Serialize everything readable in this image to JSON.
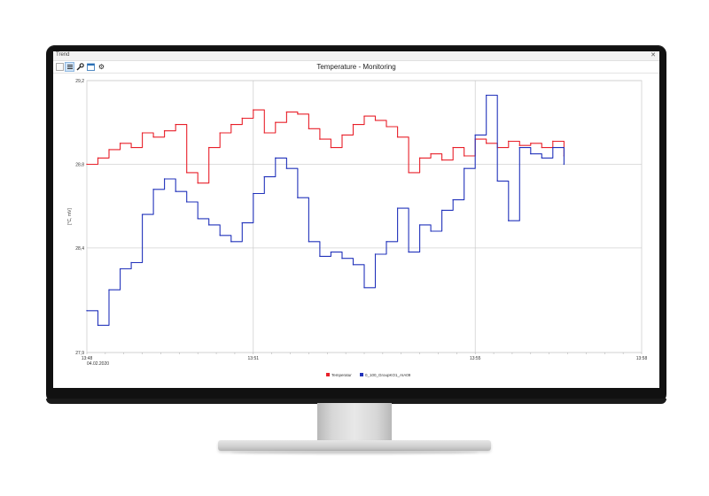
{
  "window": {
    "title": "Trend"
  },
  "toolbar": {
    "icons": [
      "chart-icon",
      "list-icon",
      "wrench-icon",
      "calendar-icon",
      "gear-icon"
    ],
    "title": "Temperature - Monitoring"
  },
  "chart_data": {
    "type": "line",
    "title": "Temperature - Monitoring",
    "xlabel": "",
    "ylabel": "[°C, mV]",
    "x_ticks": [
      "13:48",
      "13:51",
      "13:55",
      "13:58"
    ],
    "x_date": "04.02.2020",
    "y_ticks": [
      "27,9",
      "28,4",
      "28,8",
      "29,2"
    ],
    "ylim": [
      27.9,
      29.2
    ],
    "xlim": [
      "13:48",
      "13:58"
    ],
    "grid": true,
    "legend": "bottom-center",
    "series": [
      {
        "name": "Temperatur",
        "color": "#e8202a",
        "x": [
          "13:48:00",
          "13:48:12",
          "13:48:24",
          "13:48:36",
          "13:48:48",
          "13:49:00",
          "13:49:12",
          "13:49:24",
          "13:49:36",
          "13:49:48",
          "13:50:00",
          "13:50:12",
          "13:50:24",
          "13:50:36",
          "13:50:48",
          "13:51:00",
          "13:51:12",
          "13:51:24",
          "13:51:36",
          "13:51:48",
          "13:52:00",
          "13:52:12",
          "13:52:24",
          "13:52:36",
          "13:52:48",
          "13:53:00",
          "13:53:12",
          "13:53:24",
          "13:53:36",
          "13:53:48",
          "13:54:00",
          "13:54:12",
          "13:54:24",
          "13:54:36",
          "13:54:48",
          "13:55:00",
          "13:55:12",
          "13:55:24",
          "13:55:36",
          "13:55:48",
          "13:56:00",
          "13:56:12",
          "13:56:24",
          "13:56:36"
        ],
        "values": [
          28.8,
          28.83,
          28.87,
          28.9,
          28.88,
          28.95,
          28.93,
          28.96,
          28.99,
          28.76,
          28.71,
          28.88,
          28.95,
          28.99,
          29.02,
          29.06,
          28.95,
          29.0,
          29.05,
          29.04,
          28.97,
          28.92,
          28.88,
          28.94,
          28.99,
          29.03,
          29.01,
          28.98,
          28.93,
          28.76,
          28.83,
          28.85,
          28.82,
          28.88,
          28.84,
          28.92,
          28.9,
          28.88,
          28.91,
          28.89,
          28.9,
          28.88,
          28.91,
          28.84
        ]
      },
      {
        "name": "0_100_GroupKO1_AIA09",
        "color": "#2233bb",
        "x": [
          "13:48:00",
          "13:48:12",
          "13:48:24",
          "13:48:36",
          "13:48:48",
          "13:49:00",
          "13:49:12",
          "13:49:24",
          "13:49:36",
          "13:49:48",
          "13:50:00",
          "13:50:12",
          "13:50:24",
          "13:50:36",
          "13:50:48",
          "13:51:00",
          "13:51:12",
          "13:51:24",
          "13:51:36",
          "13:51:48",
          "13:52:00",
          "13:52:12",
          "13:52:24",
          "13:52:36",
          "13:52:48",
          "13:53:00",
          "13:53:12",
          "13:53:24",
          "13:53:36",
          "13:53:48",
          "13:54:00",
          "13:54:12",
          "13:54:24",
          "13:54:36",
          "13:54:48",
          "13:55:00",
          "13:55:12",
          "13:55:24",
          "13:55:36",
          "13:55:48",
          "13:56:00",
          "13:56:12",
          "13:56:24",
          "13:56:36"
        ],
        "values": [
          28.1,
          28.03,
          28.2,
          28.3,
          28.33,
          28.56,
          28.68,
          28.73,
          28.67,
          28.62,
          28.54,
          28.51,
          28.46,
          28.43,
          28.52,
          28.66,
          28.74,
          28.83,
          28.78,
          28.64,
          28.43,
          28.36,
          28.38,
          28.35,
          28.32,
          28.21,
          28.37,
          28.43,
          28.59,
          28.38,
          28.51,
          28.48,
          28.58,
          28.63,
          28.78,
          28.94,
          29.13,
          28.72,
          28.53,
          28.88,
          28.85,
          28.83,
          28.88,
          28.8
        ]
      }
    ]
  }
}
